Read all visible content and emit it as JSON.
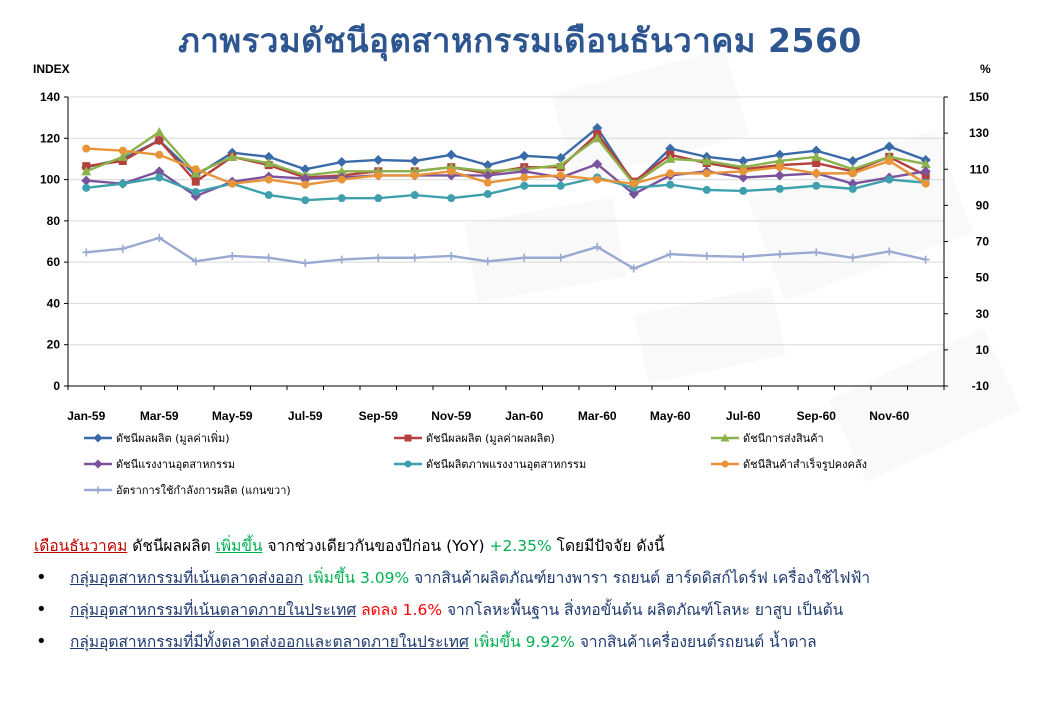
{
  "title": "ภาพรวมดัชนีอุตสาหกรรมเดือนธันวาคม 2560",
  "chart_data": {
    "type": "line",
    "left_axis_label": "INDEX",
    "right_axis_label": "%",
    "left_ylim": [
      0,
      140
    ],
    "left_ticks": [
      0,
      20,
      40,
      60,
      80,
      100,
      120,
      140
    ],
    "right_ylim": [
      -10,
      150
    ],
    "right_ticks": [
      -10,
      10,
      30,
      50,
      70,
      90,
      110,
      130,
      150
    ],
    "categories": [
      "Jan-59",
      "Feb-59",
      "Mar-59",
      "Apr-59",
      "May-59",
      "Jun-59",
      "Jul-59",
      "Aug-59",
      "Sep-59",
      "Oct-59",
      "Nov-59",
      "Dec-59",
      "Jan-60",
      "Feb-60",
      "Mar-60",
      "Apr-60",
      "May-60",
      "Jun-60",
      "Jul-60",
      "Aug-60",
      "Sep-60",
      "Oct-60",
      "Nov-60",
      "Dec-60"
    ],
    "x_tick_labels": [
      "Jan-59",
      "Mar-59",
      "May-59",
      "Jul-59",
      "Sep-59",
      "Nov-59",
      "Jan-60",
      "Mar-60",
      "May-60",
      "Jul-60",
      "Sep-60",
      "Nov-60"
    ],
    "grid": true,
    "legend_position": "bottom",
    "series": [
      {
        "name": "ดัชนีผลผลิต (มูลค่าเพิ่ม)",
        "color": "#3a6aa8",
        "marker": "diamond",
        "axis": "left",
        "values": [
          106,
          110,
          119,
          102,
          113,
          111,
          105,
          108.5,
          109.5,
          109,
          112,
          107,
          111.5,
          110.5,
          125,
          98,
          115,
          111,
          109,
          112,
          114,
          109,
          116,
          109.5
        ]
      },
      {
        "name": "ดัชนีผลผลิต (มูลค่าผลผลิต)",
        "color": "#b5403c",
        "marker": "square",
        "axis": "left",
        "values": [
          106.5,
          109,
          119,
          99,
          111,
          107,
          101,
          102,
          104,
          104,
          106,
          103,
          106,
          106,
          122,
          99,
          112,
          108,
          105,
          107,
          108,
          104,
          111,
          102
        ]
      },
      {
        "name": "ดัชนีการส่งสินค้า",
        "color": "#8cb24b",
        "marker": "triangle",
        "axis": "left",
        "values": [
          104,
          111,
          123,
          103,
          111,
          108,
          102,
          104,
          104,
          104,
          106,
          104,
          105,
          107,
          120,
          98,
          110,
          109,
          106,
          109,
          111,
          105,
          111,
          107.5
        ]
      },
      {
        "name": "ดัชนีแรงงานอุตสาหกรรม",
        "color": "#7a539c",
        "marker": "diamond",
        "axis": "left",
        "values": [
          99.5,
          98,
          104,
          92,
          99,
          101.5,
          100.5,
          101,
          102,
          102,
          102,
          102,
          104,
          101,
          107.5,
          93,
          102,
          104,
          101,
          102,
          103,
          98,
          101,
          104
        ]
      },
      {
        "name": "ดัชนีผลิตภาพแรงงานอุตสาหกรรม",
        "color": "#3fa0ad",
        "marker": "circle",
        "axis": "left",
        "values": [
          96,
          98,
          101,
          94,
          98,
          92.5,
          90,
          91,
          91,
          92.5,
          91,
          93,
          97,
          97,
          101,
          96,
          97.5,
          95,
          94.5,
          95.5,
          97,
          95.5,
          100,
          98.5
        ]
      },
      {
        "name": "ดัชนีสินค้าสำเร็จรูปคงคลัง",
        "color": "#e8953a",
        "marker": "circle",
        "axis": "left",
        "values": [
          115,
          114,
          112,
          105,
          98,
          100,
          97.5,
          100,
          102,
          102,
          104,
          98.5,
          101,
          102,
          100,
          98,
          103,
          103,
          104,
          106,
          103,
          103,
          109,
          98
        ]
      },
      {
        "name": "อัตราการใช้กำลังการผลิต (แกนขวา)",
        "color": "#9aa9d2",
        "marker": "plus",
        "axis": "right",
        "values": [
          64,
          66,
          72,
          59,
          62,
          61,
          58,
          60,
          61,
          61,
          62,
          59,
          61,
          61,
          67,
          55,
          63,
          62,
          61.5,
          63,
          64,
          61,
          64.5,
          60
        ]
      }
    ]
  },
  "summary": {
    "line1": {
      "month": "เดือนธันวาคม",
      "t1": " ดัชนีผลผลิต ",
      "change": "เพิ่มขึ้น",
      "t2": " จากช่วงเดียวกันของปีก่อน (YoY) ",
      "pct": "+2.35%",
      "t3": " โดยมีปัจจัย ดังนี้"
    },
    "bullets": [
      {
        "group": "กลุ่มอุตสาหกรรมที่เน้นตลาดส่งออก",
        "change": "เพิ่มขึ้น 3.09%",
        "change_color": "green",
        "detail": " จากสินค้าผลิตภัณฑ์ยางพารา รถยนต์ ฮาร์ดดิสก์ไดร์ฟ เครื่องใช้ไฟฟ้า"
      },
      {
        "group": "กลุ่มอุตสาหกรรมที่เน้นตลาดภายในประเทศ",
        "change": "ลดลง 1.6%",
        "change_color": "red",
        "detail": " จากโลหะพื้นฐาน สิ่งทอขั้นต้น ผลิตภัณฑ์โลหะ ยาสูบ เป็นต้น"
      },
      {
        "group": "กลุ่มอุตสาหกรรมที่มีทั้งตลาดส่งออกและตลาดภายในประเทศ",
        "change": "เพิ่มขึ้น 9.92%",
        "change_color": "green",
        "detail": " จากสินค้าเครื่องยนต์รถยนต์ น้ำตาล"
      }
    ]
  }
}
